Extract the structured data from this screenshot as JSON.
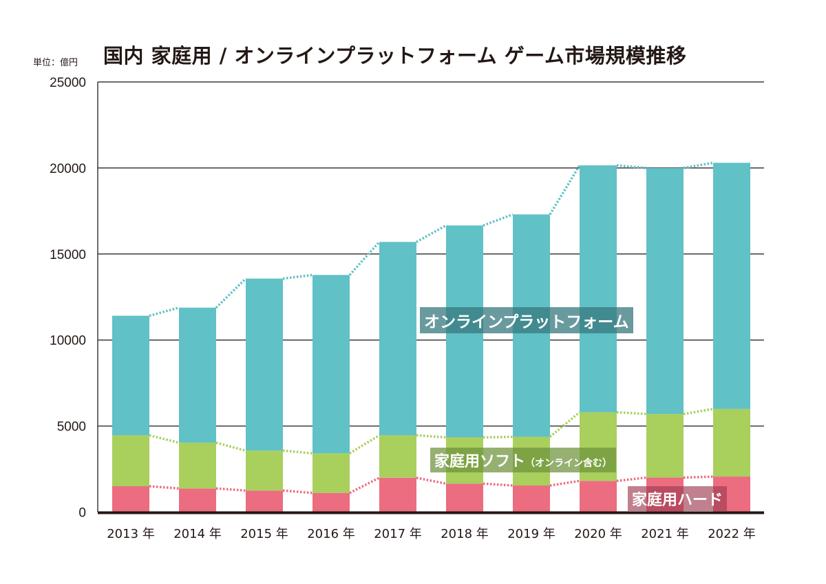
{
  "chart_data": {
    "type": "bar",
    "stacked": true,
    "title": "国内 家庭用 / オンラインプラットフォーム ゲーム市場規模推移",
    "unit_label": "単位：億円",
    "categories": [
      "2013 年",
      "2014 年",
      "2015 年",
      "2016 年",
      "2017 年",
      "2018 年",
      "2019 年",
      "2020 年",
      "2021 年",
      "2022 年"
    ],
    "series": [
      {
        "name": "家庭用ハード",
        "color": "#ec6c80",
        "values": [
          1500,
          1370,
          1250,
          1110,
          1990,
          1650,
          1540,
          1810,
          2000,
          2060
        ]
      },
      {
        "name": "家庭用ソフト（オンライン含む）",
        "color": "#a9cf5d",
        "values": [
          2960,
          2660,
          2320,
          2300,
          2470,
          2690,
          2830,
          3990,
          3700,
          3930
        ]
      },
      {
        "name": "オンラインプラットフォーム",
        "color": "#60c1c6",
        "values": [
          6950,
          7850,
          10000,
          10370,
          11240,
          12320,
          12930,
          14350,
          14300,
          14310
        ]
      }
    ],
    "series_labels": {
      "hard": "家庭用ハード",
      "soft_main": "家庭用ソフト",
      "soft_note": "（オンライン含む）",
      "online": "オンラインプラットフォーム"
    },
    "ylim": [
      0,
      25000
    ],
    "yticks": [
      "0",
      "5000",
      "10000",
      "15000",
      "20000",
      "25000"
    ],
    "grid": true,
    "legend": "inline labels"
  }
}
